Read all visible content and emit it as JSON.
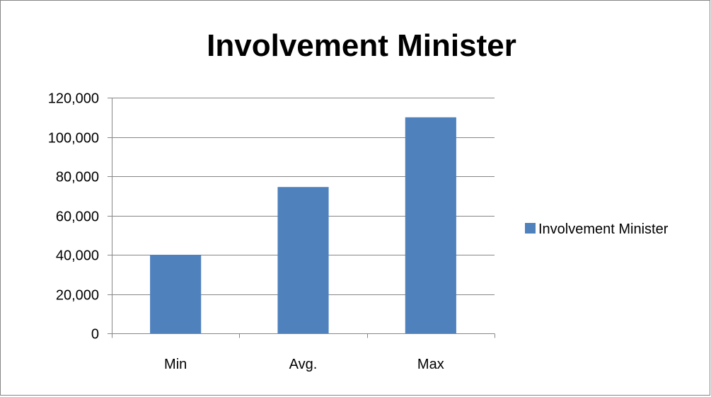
{
  "chart_data": {
    "type": "bar",
    "title": "Involvement Minister",
    "categories": [
      "Min",
      "Avg.",
      "Max"
    ],
    "series": [
      {
        "name": "Involvement Minister",
        "values": [
          40000,
          74500,
          110000
        ]
      }
    ],
    "ylim": [
      0,
      120000
    ],
    "yticks": [
      0,
      20000,
      40000,
      60000,
      80000,
      100000,
      120000
    ],
    "ytick_labels": [
      "0",
      "20,000",
      "40,000",
      "60,000",
      "80,000",
      "100,000",
      "120,000"
    ],
    "grid": true,
    "legend_position": "right",
    "bar_color": "#4f81bd",
    "grid_color": "#868686"
  }
}
